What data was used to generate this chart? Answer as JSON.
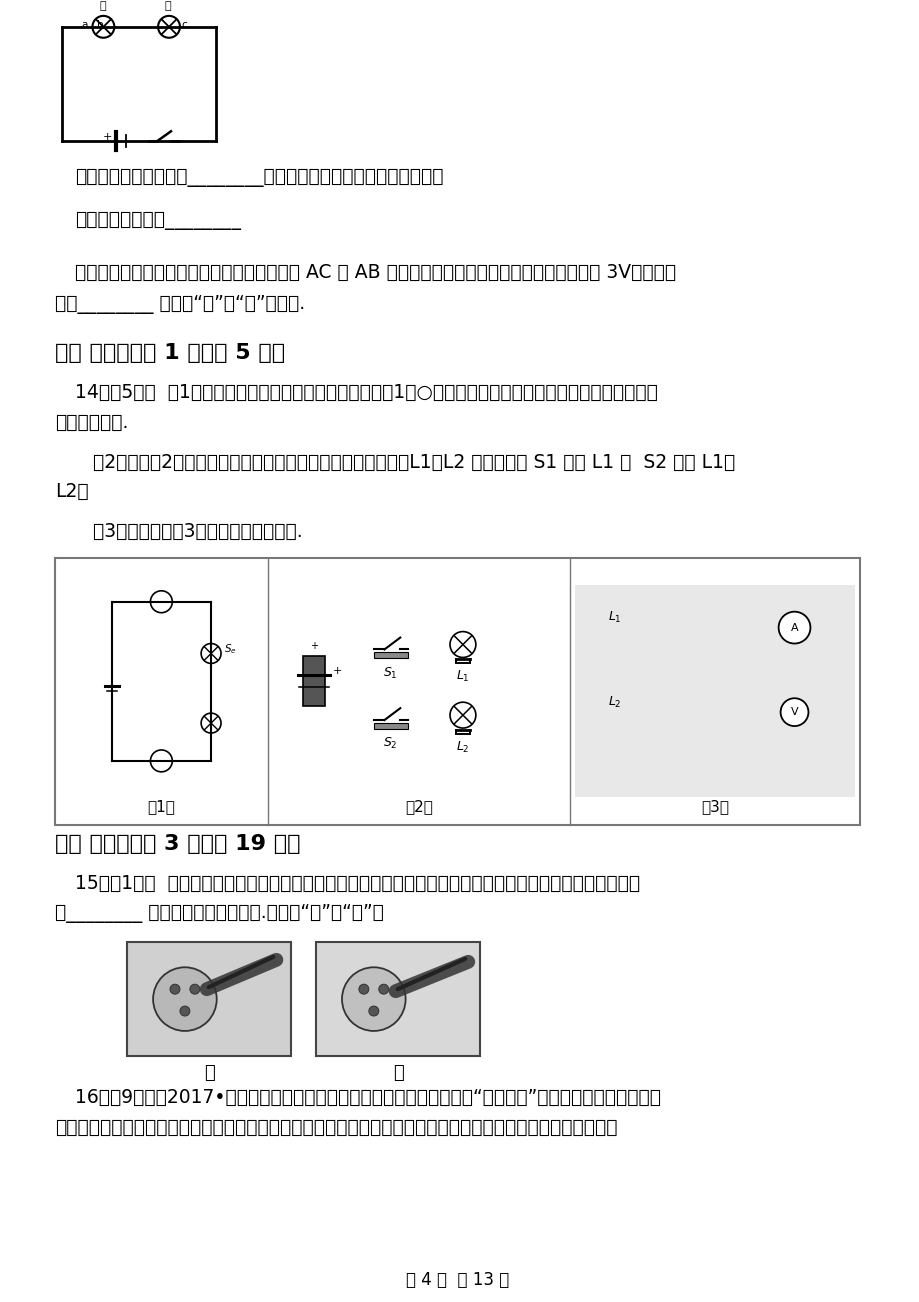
{
  "bg_color": "#ffffff",
  "text_color": "#000000",
  "page_width": 9.2,
  "page_height": 13.02,
  "line_caozuo": "操作方法：断开开关，________（也可以在图上画图描述操作方法）",
  "line_shiyan": "实验现象及结果：________",
  "line_tuozhan": "【拓展】闭合开关，小明同学用电压表分别测 AC 和 AB 两点间的电压，发现两次电压表的示数均为 3V，由此判",
  "line_dingdeng": "定灯________ （选填“甲”或“乙”）断路.",
  "sec3_title": "三、 作图题（共 1 题；共 5 分）",
  "q14_a": "14．（5分）  （1）闭合开关后，小灯正常发光，请在图（1）○内填上电流表或者电压表的符号，并标出它们",
  "q14_a2": "的正负接线柱.",
  "q14_b": "   （2）如图（2）所示，请按要求连接实物，导线不允许交叉：L1、L2 并联；开关 S1 控制 L1 ，  S2 控制 L1、",
  "q14_b2": "L2．",
  "q14_c": "   （3）画出如图（3）所示电路的电路图.",
  "sec4_title": "四、 实验题（共 3 题；共 19 分）",
  "q15_a": "15．（1分）  小丽要判断三孔插座中哪个孔连接的是火线，她把试电笔插入三孔插座中，如图甲、乙所示，则",
  "q15_b": "图________ 中试电笔的氖管会发光.（选填“甲”或“乙”）",
  "img_jia_label": "甲",
  "img_yi_label": "乙",
  "q16_a": "16．（9分）（2017•武汉模拟）在我国随着人民生活水平的提高，加上“汽车下乡”政策的实施，不少农村家",
  "q16_b": "庭都购买了汽车，汽车开始进入普通百姓家庭．家住农村的小明同学家买了一辆崭新的三厢汽车（如图甲）．小明",
  "page_footer": "第 4 页  共 13 页"
}
